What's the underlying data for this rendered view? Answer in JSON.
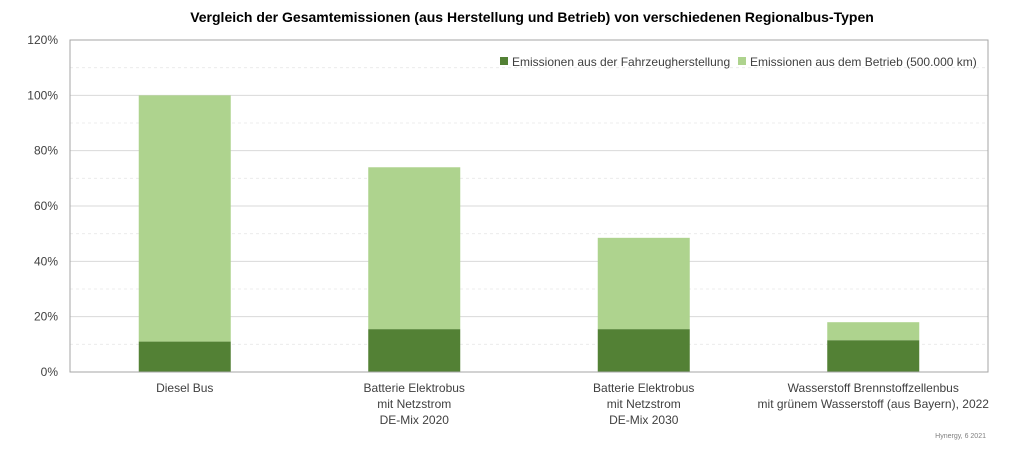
{
  "chart_data": {
    "type": "bar",
    "stacked": true,
    "title": "Vergleich der Gesamtemissionen (aus Herstellung und Betrieb) von verschiedenen Regionalbus-Typen",
    "categories": [
      [
        "Diesel Bus"
      ],
      [
        "Batterie Elektrobus",
        "mit Netzstrom",
        "DE-Mix 2020"
      ],
      [
        "Batterie Elektrobus",
        "mit Netzstrom",
        "DE-Mix 2030"
      ],
      [
        "Wasserstoff Brennstoffzellenbus",
        "mit grünem Wasserstoff (aus Bayern), 2022"
      ]
    ],
    "series": [
      {
        "name": "Emissionen aus der Fahrzeugherstellung",
        "color": "#538135",
        "values": [
          11,
          15.5,
          15.5,
          11.5
        ]
      },
      {
        "name": "Emissionen aus dem Betrieb (500.000 km)",
        "color": "#aed38e",
        "values": [
          89,
          58.5,
          33,
          6.5
        ]
      }
    ],
    "ylim": [
      0,
      120
    ],
    "yticks": [
      0,
      20,
      40,
      60,
      80,
      100,
      120
    ],
    "ytick_labels": [
      "0%",
      "20%",
      "40%",
      "60%",
      "80%",
      "100%",
      "120%"
    ],
    "grid": true,
    "legend_position": "top-right",
    "colors": {
      "grid": "#d9d9d9",
      "axis": "#a6a6a6",
      "text": "#404040"
    }
  },
  "footnote": "Hynergy, 6 2021"
}
